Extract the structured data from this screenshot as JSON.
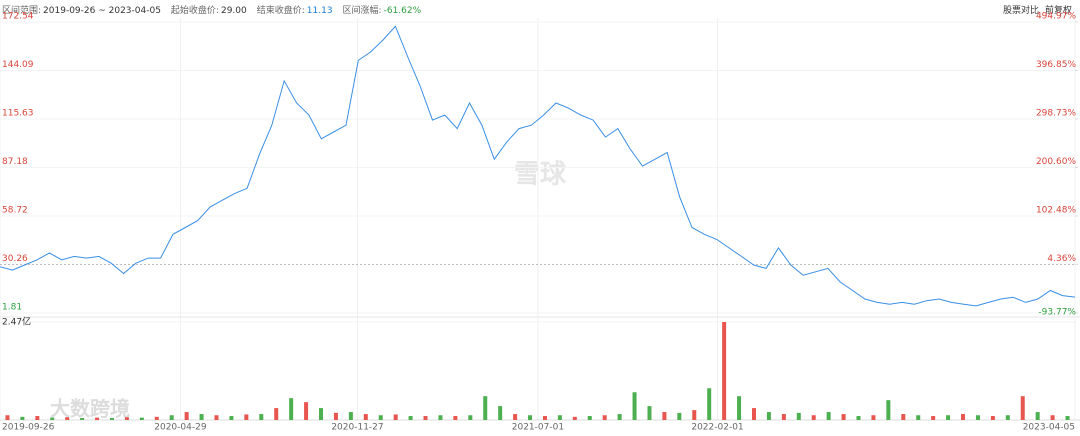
{
  "header": {
    "items": [
      {
        "label": "区间范围:",
        "value": "2019-09-26 ~ 2023-04-05"
      },
      {
        "label": "起始收盘价:",
        "value": "29.00"
      },
      {
        "label": "结束收盘价:",
        "value": "11.13"
      },
      {
        "label": "区间涨幅:",
        "value": "-61.62%"
      }
    ],
    "actions": [
      "股票对比",
      "前复权"
    ]
  },
  "watermarks": [
    "雪球",
    "大数跨境"
  ],
  "chart_data": {
    "type": "line",
    "xlim": [
      "2019-09-26",
      "2023-04-05"
    ],
    "xticks": [
      "2019-09-26",
      "2020-04-29",
      "2020-11-27",
      "2021-07-01",
      "2022-02-01",
      "2023-04-05"
    ],
    "ylim": [
      1.81,
      172.54
    ],
    "yticks": [
      172.54,
      144.09,
      115.63,
      87.18,
      58.72,
      30.26,
      1.81
    ],
    "y2lim": [
      -93.77,
      494.97
    ],
    "y2ticks": [
      {
        "value": 494.97,
        "label": "494.97%"
      },
      {
        "value": 396.85,
        "label": "396.85%"
      },
      {
        "value": 298.73,
        "label": "298.73%"
      },
      {
        "value": 200.6,
        "label": "200.60%"
      },
      {
        "value": 102.48,
        "label": "102.48%"
      },
      {
        "value": 4.36,
        "label": "4.36%"
      },
      {
        "value": -93.77,
        "label": "-93.77%"
      }
    ],
    "grid": true,
    "series": [
      {
        "color": "#3a8ee6",
        "values": [
          29,
          27,
          30,
          33,
          37,
          33,
          35,
          34,
          35,
          31,
          25,
          31,
          34,
          34,
          48,
          52,
          56,
          64,
          68,
          72,
          75,
          95,
          112,
          138,
          125,
          118,
          104,
          108,
          112,
          150,
          155,
          162,
          170,
          152,
          135,
          115,
          118,
          110,
          125,
          112,
          92,
          102,
          110,
          112,
          118,
          125,
          122,
          118,
          115,
          105,
          110,
          98,
          88,
          92,
          96,
          70,
          52,
          48,
          45,
          40,
          35,
          30,
          28,
          40,
          30,
          24,
          26,
          28,
          20,
          15,
          10,
          8,
          7,
          8,
          7,
          9,
          10,
          8,
          7,
          6,
          8,
          10,
          11,
          8,
          10,
          15,
          12,
          11.13
        ]
      }
    ],
    "volume": {
      "ylim": [
        0,
        2.47
      ],
      "yticks": [
        {
          "value": 2.47,
          "label": "2.47亿"
        }
      ],
      "series": [
        {
          "color": "#e8554e",
          "values": [
            0.12,
            null,
            0.1,
            null,
            0.07,
            null,
            0.06,
            null,
            0.07,
            null,
            0.08,
            null,
            0.2,
            null,
            0.12,
            null,
            0.14,
            null,
            0.3,
            null,
            0.45,
            null,
            0.18,
            null,
            0.15,
            null,
            0.14,
            null,
            0.1,
            null,
            0.1,
            null,
            null,
            null,
            0.15,
            null,
            0.1,
            null,
            0.08,
            null,
            0.12,
            null,
            null,
            null,
            0.2,
            null,
            0.25,
            null,
            2.47,
            null,
            0.3,
            null,
            0.15,
            null,
            0.12,
            null,
            0.15,
            null,
            0.12,
            null,
            0.15,
            null,
            0.1,
            null,
            0.15,
            null,
            0.1,
            null,
            0.6,
            null,
            0.12,
            null
          ]
        },
        {
          "color": "#4caf50",
          "values": [
            null,
            0.08,
            null,
            0.06,
            null,
            0.05,
            null,
            0.05,
            null,
            0.06,
            null,
            0.12,
            null,
            0.15,
            null,
            0.1,
            null,
            0.15,
            null,
            0.55,
            null,
            0.3,
            null,
            0.2,
            null,
            0.12,
            null,
            0.1,
            null,
            0.12,
            null,
            0.12,
            0.6,
            0.35,
            null,
            0.12,
            null,
            0.12,
            null,
            0.1,
            null,
            0.15,
            0.7,
            0.35,
            null,
            0.18,
            null,
            0.8,
            null,
            0.6,
            null,
            0.2,
            null,
            0.18,
            null,
            0.2,
            null,
            0.1,
            null,
            0.5,
            null,
            0.12,
            null,
            0.12,
            null,
            0.12,
            null,
            0.12,
            null,
            0.2,
            null,
            0.1
          ]
        }
      ]
    }
  }
}
